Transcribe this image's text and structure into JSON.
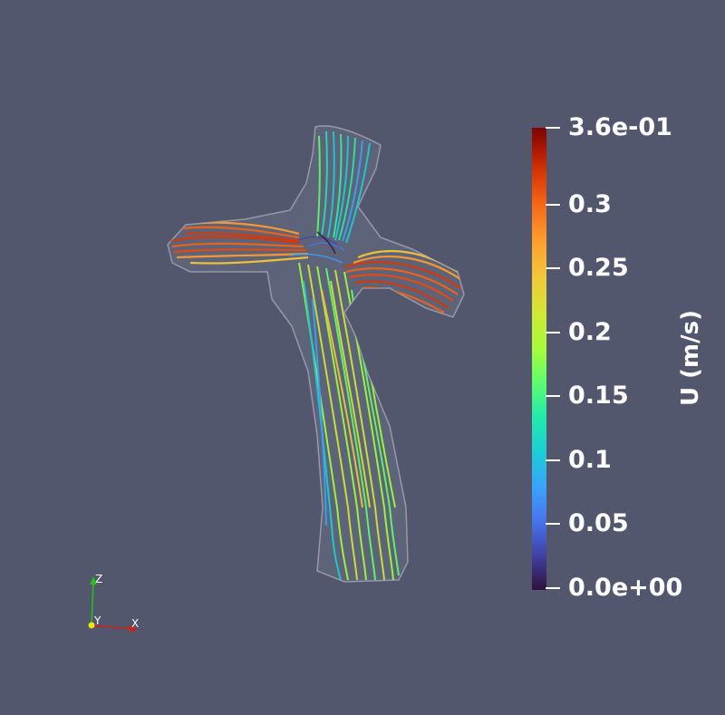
{
  "colorbar": {
    "title": "U (m/s)",
    "labels": [
      {
        "text": "3.6e-01",
        "value": 0.36
      },
      {
        "text": "0.3",
        "value": 0.3
      },
      {
        "text": "0.25",
        "value": 0.25
      },
      {
        "text": "0.2",
        "value": 0.2
      },
      {
        "text": "0.15",
        "value": 0.15
      },
      {
        "text": "0.1",
        "value": 0.1
      },
      {
        "text": "0.05",
        "value": 0.05
      },
      {
        "text": "0.0e+00",
        "value": 0.0
      }
    ],
    "range": [
      0.0,
      0.36
    ],
    "colormap": "turbo"
  },
  "orientation_axes": {
    "x_label": "X",
    "y_label": "Y",
    "z_label": "Z",
    "x_color": "#d0201a",
    "y_color": "#f2e600",
    "z_color": "#27c21b"
  },
  "colors": {
    "background": "#52576e",
    "vessel_outline": "#c8cad6"
  }
}
